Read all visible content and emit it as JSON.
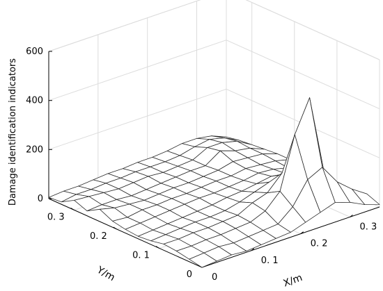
{
  "chart_data": {
    "type": "surface",
    "xlabel": "X/m",
    "ylabel": "Y/m",
    "zlabel": "Damage identification indicators",
    "xlim": [
      0,
      0.36
    ],
    "ylim": [
      0,
      0.36
    ],
    "zlim": [
      0,
      600
    ],
    "grid": true,
    "x_ticks": [
      0,
      0.1,
      0.2,
      0.3
    ],
    "y_ticks": [
      0,
      0.1,
      0.2,
      0.3
    ],
    "z_ticks": [
      0,
      200,
      400,
      600
    ],
    "x_tick_labels": [
      "0",
      "0. 1",
      "0. 2",
      "0. 3"
    ],
    "y_tick_labels": [
      "0",
      "0. 1",
      "0. 2",
      "0. 3"
    ],
    "z_tick_labels": [
      "0",
      "200",
      "400",
      "600"
    ],
    "x": [
      0,
      0.03,
      0.06,
      0.09,
      0.12,
      0.15,
      0.18,
      0.21,
      0.24,
      0.27,
      0.3,
      0.33,
      0.36
    ],
    "y": [
      0,
      0.03,
      0.06,
      0.09,
      0.12,
      0.15,
      0.18,
      0.21,
      0.24,
      0.27,
      0.3,
      0.33,
      0.36
    ],
    "z": [
      [
        0,
        10,
        20,
        25,
        15,
        10,
        15,
        25,
        50,
        20,
        40,
        10,
        5
      ],
      [
        5,
        15,
        20,
        25,
        20,
        15,
        20,
        20,
        35,
        25,
        35,
        20,
        10
      ],
      [
        10,
        20,
        25,
        30,
        25,
        20,
        25,
        30,
        30,
        25,
        30,
        20,
        10
      ],
      [
        5,
        15,
        25,
        30,
        30,
        25,
        30,
        30,
        25,
        20,
        25,
        25,
        15
      ],
      [
        10,
        20,
        30,
        35,
        30,
        30,
        35,
        35,
        30,
        25,
        30,
        25,
        20
      ],
      [
        15,
        25,
        35,
        40,
        35,
        35,
        40,
        35,
        35,
        30,
        35,
        30,
        20
      ],
      [
        20,
        30,
        60,
        70,
        50,
        45,
        40,
        40,
        35,
        35,
        30,
        30,
        25
      ],
      [
        40,
        80,
        120,
        90,
        70,
        50,
        45,
        45,
        40,
        40,
        35,
        30,
        25
      ],
      [
        60,
        170,
        330,
        150,
        90,
        60,
        50,
        45,
        45,
        40,
        40,
        35,
        30
      ],
      [
        80,
        200,
        460,
        190,
        100,
        70,
        60,
        55,
        60,
        80,
        70,
        50,
        40
      ],
      [
        60,
        120,
        130,
        110,
        80,
        60,
        55,
        50,
        55,
        60,
        70,
        60,
        40
      ],
      [
        30,
        70,
        60,
        50,
        40,
        35,
        40,
        45,
        50,
        50,
        55,
        45,
        30
      ],
      [
        10,
        30,
        20,
        15,
        10,
        10,
        20,
        30,
        30,
        25,
        20,
        15,
        5
      ]
    ]
  }
}
